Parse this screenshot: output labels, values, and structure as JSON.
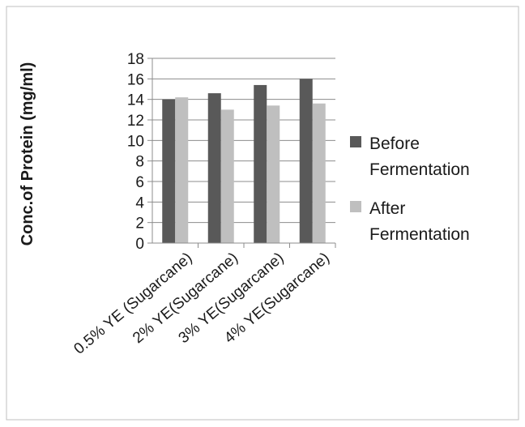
{
  "chart_data": {
    "type": "bar",
    "title": "",
    "xlabel": "",
    "ylabel": "Conc.of Protein (mg/ml)",
    "ylim": [
      0,
      18
    ],
    "yticks": [
      0,
      2,
      4,
      6,
      8,
      10,
      12,
      14,
      16,
      18
    ],
    "grid": true,
    "legend_position": "right",
    "categories": [
      "0.5% YE (Sugarcane)",
      "2% YE(Sugarcane)",
      "3% YE(Sugarcane)",
      "4% YE(Sugarcane)"
    ],
    "series": [
      {
        "name": "Before Fermentation",
        "legend_lines": [
          "Before",
          "Fermentation"
        ],
        "color": "#595959",
        "values": [
          14.0,
          14.6,
          15.4,
          16.0
        ]
      },
      {
        "name": "After Fermentation",
        "legend_lines": [
          "After",
          "Fermentation"
        ],
        "color": "#bfbfbf",
        "values": [
          14.2,
          13.0,
          13.4,
          13.6
        ]
      }
    ]
  }
}
